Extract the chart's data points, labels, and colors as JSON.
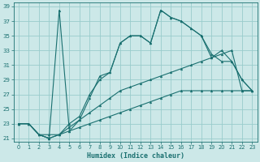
{
  "xlabel": "Humidex (Indice chaleur)",
  "bg_color": "#cce8e8",
  "grid_color": "#99cccc",
  "line_color": "#1a7070",
  "xlim": [
    -0.5,
    23.5
  ],
  "ylim": [
    20.5,
    39.5
  ],
  "xticks": [
    0,
    1,
    2,
    3,
    4,
    5,
    6,
    7,
    8,
    9,
    10,
    11,
    12,
    13,
    14,
    15,
    16,
    17,
    18,
    19,
    20,
    21,
    22,
    23
  ],
  "yticks": [
    21,
    23,
    25,
    27,
    29,
    31,
    33,
    35,
    37,
    39
  ],
  "line1_x": [
    0,
    1,
    2,
    3,
    4,
    5,
    6,
    7,
    8,
    9,
    10,
    11,
    12,
    13,
    14,
    15,
    16,
    17,
    18,
    19,
    20,
    21,
    22,
    23
  ],
  "line1_y": [
    23,
    23,
    21.5,
    21,
    38.5,
    22,
    23.5,
    26.5,
    29.5,
    30,
    34,
    35,
    35,
    34,
    38.5,
    37.5,
    37,
    36,
    35,
    32,
    33,
    31.5,
    29,
    27.5
  ],
  "line2_x": [
    0,
    1,
    2,
    3,
    4,
    5,
    6,
    7,
    8,
    9,
    10,
    11,
    12,
    13,
    14,
    15,
    16,
    17,
    18,
    19,
    20,
    21,
    22,
    23
  ],
  "line2_y": [
    23,
    23,
    21.5,
    21,
    21.5,
    23,
    24,
    27,
    29,
    30,
    34,
    35,
    35,
    34,
    38.5,
    37.5,
    37,
    36,
    35,
    32.5,
    31.5,
    31.5,
    29,
    27.5
  ],
  "line3_x": [
    0,
    1,
    2,
    3,
    4,
    5,
    6,
    7,
    8,
    9,
    10,
    11,
    12,
    13,
    14,
    15,
    16,
    17,
    18,
    19,
    20,
    21,
    22,
    23
  ],
  "line3_y": [
    23,
    23,
    21.5,
    21,
    21.5,
    22.5,
    23.5,
    24.5,
    25.5,
    26.5,
    27.5,
    28,
    28.5,
    29,
    29.5,
    30,
    30.5,
    31,
    31.5,
    32,
    32.5,
    33,
    27.5,
    27.5
  ],
  "line4_x": [
    0,
    1,
    2,
    3,
    4,
    5,
    6,
    7,
    8,
    9,
    10,
    11,
    12,
    13,
    14,
    15,
    16,
    17,
    18,
    19,
    20,
    21,
    22,
    23
  ],
  "line4_y": [
    23,
    23,
    21.5,
    21.5,
    21.5,
    22,
    22.5,
    23,
    23.5,
    24,
    24.5,
    25,
    25.5,
    26,
    26.5,
    27,
    27.5,
    27.5,
    27.5,
    27.5,
    27.5,
    27.5,
    27.5,
    27.5
  ]
}
